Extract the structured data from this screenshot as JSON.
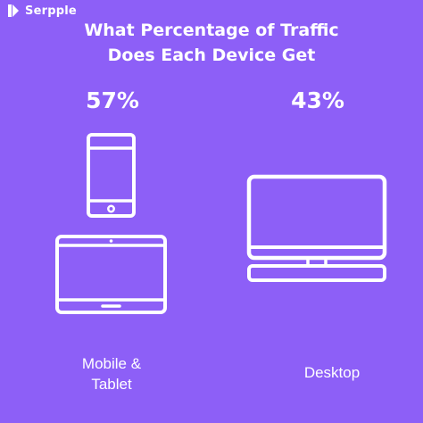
{
  "brand": {
    "name": "Serpple",
    "logo_icon": "serpple-logo-icon"
  },
  "title": {
    "line1": "What Percentage of Traffic",
    "line2": "Does Each Device Get"
  },
  "devices": [
    {
      "percentage": "57%",
      "label_line1": "Mobile &",
      "label_line2": "Tablet",
      "icons": [
        "smartphone-icon",
        "tablet-icon"
      ]
    },
    {
      "percentage": "43%",
      "label_line1": "Desktop",
      "icons": [
        "desktop-monitor-icon"
      ]
    }
  ],
  "colors": {
    "background": "#8d5ff7",
    "foreground": "#ffffff"
  }
}
